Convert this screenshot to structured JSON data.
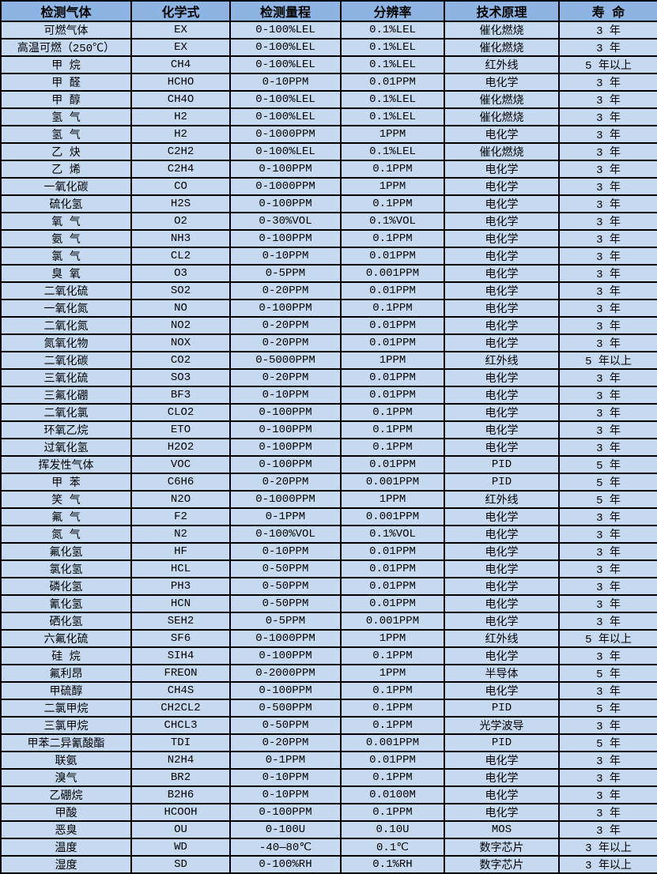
{
  "colors": {
    "header_bg": "#8DB4E2",
    "row_bg": "#C5D9F1",
    "border": "#000000",
    "text": "#000000"
  },
  "table": {
    "headers": [
      "检测气体",
      "化学式",
      "检测量程",
      "分辨率",
      "技术原理",
      "寿 命"
    ],
    "rows": [
      [
        "可燃气体",
        "EX",
        "0-100%LEL",
        "0.1%LEL",
        "催化燃烧",
        "3 年"
      ],
      [
        "高温可燃（250℃）",
        "EX",
        "0-100%LEL",
        "0.1%LEL",
        "催化燃烧",
        "3 年"
      ],
      [
        "甲 烷",
        "CH4",
        "0-100%LEL",
        "0.1%LEL",
        "红外线",
        "5 年以上"
      ],
      [
        "甲 醛",
        "HCHO",
        "0-10PPM",
        "0.01PPM",
        "电化学",
        "3 年"
      ],
      [
        "甲 醇",
        "CH4O",
        "0-100%LEL",
        "0.1%LEL",
        "催化燃烧",
        "3 年"
      ],
      [
        "氢 气",
        "H2",
        "0-100%LEL",
        "0.1%LEL",
        "催化燃烧",
        "3 年"
      ],
      [
        "氢 气",
        "H2",
        "0-1000PPM",
        "1PPM",
        "电化学",
        "3 年"
      ],
      [
        "乙 炔",
        "C2H2",
        "0-100%LEL",
        "0.1%LEL",
        "催化燃烧",
        "3 年"
      ],
      [
        "乙 烯",
        "C2H4",
        "0-100PPM",
        "0.1PPM",
        "电化学",
        "3 年"
      ],
      [
        "一氧化碳",
        "CO",
        "0-1000PPM",
        "1PPM",
        "电化学",
        "3 年"
      ],
      [
        "硫化氢",
        "H2S",
        "0-100PPM",
        "0.1PPM",
        "电化学",
        "3 年"
      ],
      [
        "氧 气",
        "O2",
        "0-30%VOL",
        "0.1%VOL",
        "电化学",
        "3 年"
      ],
      [
        "氨 气",
        "NH3",
        "0-100PPM",
        "0.1PPM",
        "电化学",
        "3 年"
      ],
      [
        "氯 气",
        "CL2",
        "0-10PPM",
        "0.01PPM",
        "电化学",
        "3 年"
      ],
      [
        "臭 氧",
        "O3",
        "0-5PPM",
        "0.001PPM",
        "电化学",
        "3 年"
      ],
      [
        "二氧化硫",
        "SO2",
        "0-20PPM",
        "0.01PPM",
        "电化学",
        "3 年"
      ],
      [
        "一氧化氮",
        "NO",
        "0-100PPM",
        "0.1PPM",
        "电化学",
        "3 年"
      ],
      [
        "二氧化氮",
        "NO2",
        "0-20PPM",
        "0.01PPM",
        "电化学",
        "3 年"
      ],
      [
        "氮氧化物",
        "NOX",
        "0-20PPM",
        "0.01PPM",
        "电化学",
        "3 年"
      ],
      [
        "二氧化碳",
        "CO2",
        "0-5000PPM",
        "1PPM",
        "红外线",
        "5 年以上"
      ],
      [
        "三氧化硫",
        "SO3",
        "0-20PPM",
        "0.01PPM",
        "电化学",
        "3 年"
      ],
      [
        "三氟化硼",
        "BF3",
        "0-10PPM",
        "0.01PPM",
        "电化学",
        "3 年"
      ],
      [
        "二氧化氯",
        "CLO2",
        "0-100PPM",
        "0.1PPM",
        "电化学",
        "3 年"
      ],
      [
        "环氧乙烷",
        "ETO",
        "0-100PPM",
        "0.1PPM",
        "电化学",
        "3 年"
      ],
      [
        "过氧化氢",
        "H2O2",
        "0-100PPM",
        "0.1PPM",
        "电化学",
        "3 年"
      ],
      [
        "挥发性气体",
        "VOC",
        "0-100PPM",
        "0.01PPM",
        "PID",
        "5 年"
      ],
      [
        "甲 苯",
        "C6H6",
        "0-20PPM",
        "0.001PPM",
        "PID",
        "5 年"
      ],
      [
        "笑 气",
        "N2O",
        "0-1000PPM",
        "1PPM",
        "红外线",
        "5 年"
      ],
      [
        "氟 气",
        "F2",
        "0-1PPM",
        "0.001PPM",
        "电化学",
        "3 年"
      ],
      [
        "氮 气",
        "N2",
        "0-100%VOL",
        "0.1%VOL",
        "电化学",
        "3 年"
      ],
      [
        "氟化氢",
        "HF",
        "0-10PPM",
        "0.01PPM",
        "电化学",
        "3 年"
      ],
      [
        "氯化氢",
        "HCL",
        "0-50PPM",
        "0.01PPM",
        "电化学",
        "3 年"
      ],
      [
        "磷化氢",
        "PH3",
        "0-50PPM",
        "0.01PPM",
        "电化学",
        "3 年"
      ],
      [
        "氰化氢",
        "HCN",
        "0-50PPM",
        "0.01PPM",
        "电化学",
        "3 年"
      ],
      [
        "硒化氢",
        "SEH2",
        "0-5PPM",
        "0.001PPM",
        "电化学",
        "3 年"
      ],
      [
        "六氟化硫",
        "SF6",
        "0-1000PPM",
        "1PPM",
        "红外线",
        "5 年以上"
      ],
      [
        "硅 烷",
        "SIH4",
        "0-100PPM",
        "0.1PPM",
        "电化学",
        "3 年"
      ],
      [
        "氟利昂",
        "FREON",
        "0-2000PPM",
        "1PPM",
        "半导体",
        "5 年"
      ],
      [
        "甲硫醇",
        "CH4S",
        "0-100PPM",
        "0.1PPM",
        "电化学",
        "3 年"
      ],
      [
        "二氯甲烷",
        "CH2CL2",
        "0-500PPM",
        "0.1PPM",
        "PID",
        "5 年"
      ],
      [
        "三氯甲烷",
        "CHCL3",
        "0-50PPM",
        "0.1PPM",
        "光学波导",
        "3 年"
      ],
      [
        "甲苯二异氰酸酯",
        "TDI",
        "0-20PPM",
        "0.001PPM",
        "PID",
        "5 年"
      ],
      [
        "联氨",
        "N2H4",
        "0-1PPM",
        "0.01PPM",
        "电化学",
        "3 年"
      ],
      [
        "溴气",
        "BR2",
        "0-10PPM",
        "0.1PPM",
        "电化学",
        "3 年"
      ],
      [
        "乙硼烷",
        "B2H6",
        "0-10PPM",
        "0.0100M",
        "电化学",
        "3 年"
      ],
      [
        "甲酸",
        "HCOOH",
        "0-100PPM",
        "0.1PPM",
        "电化学",
        "3 年"
      ],
      [
        "恶臭",
        "OU",
        "0-100U",
        "0.10U",
        "MOS",
        "3 年"
      ],
      [
        "温度",
        "WD",
        "-40—80℃",
        "0.1℃",
        "数字芯片",
        "3 年以上"
      ],
      [
        "湿度",
        "SD",
        "0-100%RH",
        "0.1%RH",
        "数字芯片",
        "3 年以上"
      ]
    ],
    "column_keys": [
      "gas_name",
      "chemical_formula",
      "detection_range",
      "resolution",
      "technology_principle",
      "lifespan"
    ]
  }
}
